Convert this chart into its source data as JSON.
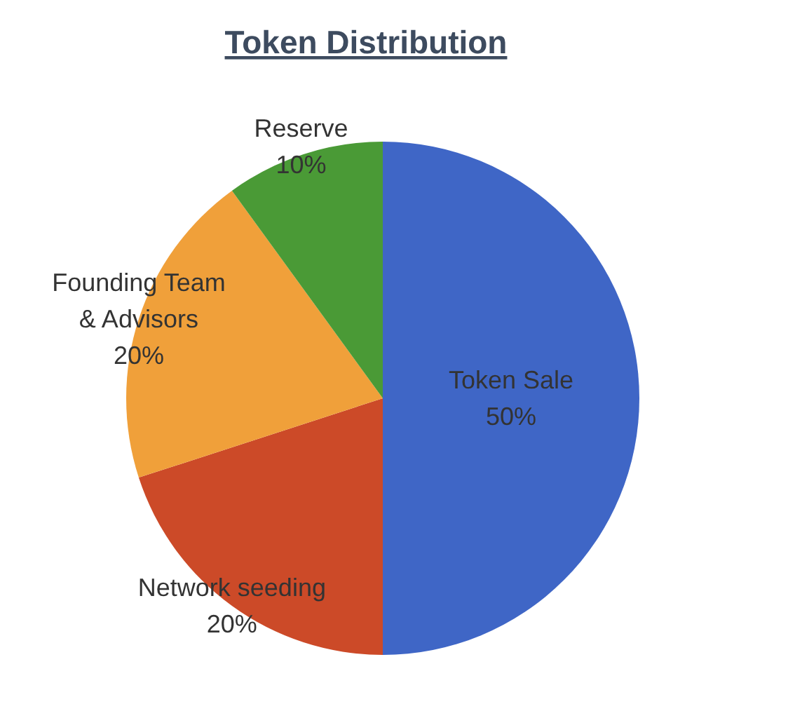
{
  "chart_data": {
    "type": "pie",
    "title": "Token Distribution",
    "categories": [
      "Token Sale",
      "Network seeding",
      "Founding Team & Advisors",
      "Reserve"
    ],
    "values": [
      50,
      20,
      20,
      10
    ],
    "colors": [
      "#3f66c6",
      "#cc4a28",
      "#f0a03a",
      "#4a9a36"
    ],
    "value_labels": [
      "50%",
      "20%",
      "20%",
      "10%"
    ]
  }
}
